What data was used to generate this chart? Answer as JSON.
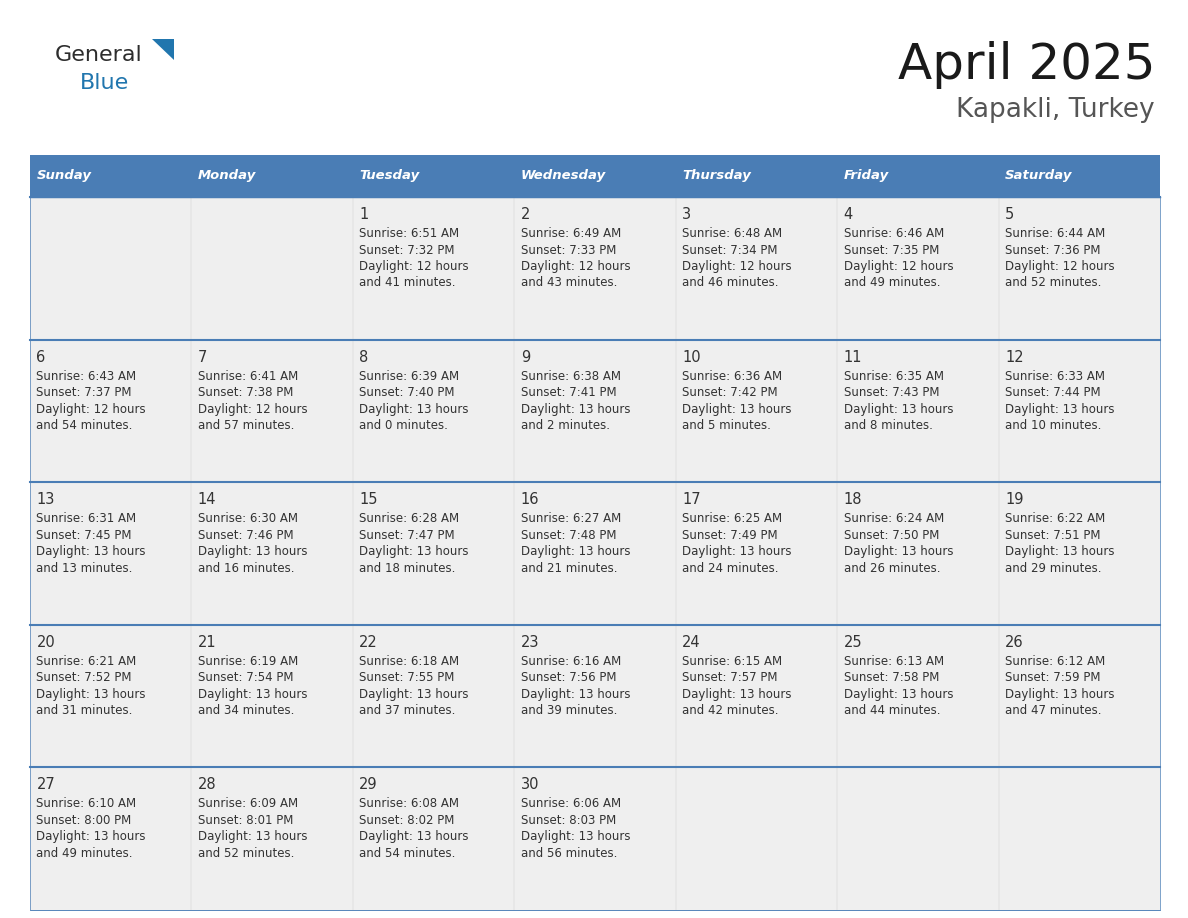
{
  "title": "April 2025",
  "subtitle": "Kapakli, Turkey",
  "header_bg": "#4A7DB5",
  "header_text_color": "#FFFFFF",
  "cell_bg_light": "#EFEFEF",
  "cell_bg_white": "#FFFFFF",
  "border_color": "#4A7DB5",
  "text_color": "#333333",
  "day_names": [
    "Sunday",
    "Monday",
    "Tuesday",
    "Wednesday",
    "Thursday",
    "Friday",
    "Saturday"
  ],
  "days": [
    {
      "day": 1,
      "col": 2,
      "row": 0,
      "sunrise": "6:51 AM",
      "sunset": "7:32 PM",
      "daylight": "12 hours",
      "daylight2": "and 41 minutes."
    },
    {
      "day": 2,
      "col": 3,
      "row": 0,
      "sunrise": "6:49 AM",
      "sunset": "7:33 PM",
      "daylight": "12 hours",
      "daylight2": "and 43 minutes."
    },
    {
      "day": 3,
      "col": 4,
      "row": 0,
      "sunrise": "6:48 AM",
      "sunset": "7:34 PM",
      "daylight": "12 hours",
      "daylight2": "and 46 minutes."
    },
    {
      "day": 4,
      "col": 5,
      "row": 0,
      "sunrise": "6:46 AM",
      "sunset": "7:35 PM",
      "daylight": "12 hours",
      "daylight2": "and 49 minutes."
    },
    {
      "day": 5,
      "col": 6,
      "row": 0,
      "sunrise": "6:44 AM",
      "sunset": "7:36 PM",
      "daylight": "12 hours",
      "daylight2": "and 52 minutes."
    },
    {
      "day": 6,
      "col": 0,
      "row": 1,
      "sunrise": "6:43 AM",
      "sunset": "7:37 PM",
      "daylight": "12 hours",
      "daylight2": "and 54 minutes."
    },
    {
      "day": 7,
      "col": 1,
      "row": 1,
      "sunrise": "6:41 AM",
      "sunset": "7:38 PM",
      "daylight": "12 hours",
      "daylight2": "and 57 minutes."
    },
    {
      "day": 8,
      "col": 2,
      "row": 1,
      "sunrise": "6:39 AM",
      "sunset": "7:40 PM",
      "daylight": "13 hours",
      "daylight2": "and 0 minutes."
    },
    {
      "day": 9,
      "col": 3,
      "row": 1,
      "sunrise": "6:38 AM",
      "sunset": "7:41 PM",
      "daylight": "13 hours",
      "daylight2": "and 2 minutes."
    },
    {
      "day": 10,
      "col": 4,
      "row": 1,
      "sunrise": "6:36 AM",
      "sunset": "7:42 PM",
      "daylight": "13 hours",
      "daylight2": "and 5 minutes."
    },
    {
      "day": 11,
      "col": 5,
      "row": 1,
      "sunrise": "6:35 AM",
      "sunset": "7:43 PM",
      "daylight": "13 hours",
      "daylight2": "and 8 minutes."
    },
    {
      "day": 12,
      "col": 6,
      "row": 1,
      "sunrise": "6:33 AM",
      "sunset": "7:44 PM",
      "daylight": "13 hours",
      "daylight2": "and 10 minutes."
    },
    {
      "day": 13,
      "col": 0,
      "row": 2,
      "sunrise": "6:31 AM",
      "sunset": "7:45 PM",
      "daylight": "13 hours",
      "daylight2": "and 13 minutes."
    },
    {
      "day": 14,
      "col": 1,
      "row": 2,
      "sunrise": "6:30 AM",
      "sunset": "7:46 PM",
      "daylight": "13 hours",
      "daylight2": "and 16 minutes."
    },
    {
      "day": 15,
      "col": 2,
      "row": 2,
      "sunrise": "6:28 AM",
      "sunset": "7:47 PM",
      "daylight": "13 hours",
      "daylight2": "and 18 minutes."
    },
    {
      "day": 16,
      "col": 3,
      "row": 2,
      "sunrise": "6:27 AM",
      "sunset": "7:48 PM",
      "daylight": "13 hours",
      "daylight2": "and 21 minutes."
    },
    {
      "day": 17,
      "col": 4,
      "row": 2,
      "sunrise": "6:25 AM",
      "sunset": "7:49 PM",
      "daylight": "13 hours",
      "daylight2": "and 24 minutes."
    },
    {
      "day": 18,
      "col": 5,
      "row": 2,
      "sunrise": "6:24 AM",
      "sunset": "7:50 PM",
      "daylight": "13 hours",
      "daylight2": "and 26 minutes."
    },
    {
      "day": 19,
      "col": 6,
      "row": 2,
      "sunrise": "6:22 AM",
      "sunset": "7:51 PM",
      "daylight": "13 hours",
      "daylight2": "and 29 minutes."
    },
    {
      "day": 20,
      "col": 0,
      "row": 3,
      "sunrise": "6:21 AM",
      "sunset": "7:52 PM",
      "daylight": "13 hours",
      "daylight2": "and 31 minutes."
    },
    {
      "day": 21,
      "col": 1,
      "row": 3,
      "sunrise": "6:19 AM",
      "sunset": "7:54 PM",
      "daylight": "13 hours",
      "daylight2": "and 34 minutes."
    },
    {
      "day": 22,
      "col": 2,
      "row": 3,
      "sunrise": "6:18 AM",
      "sunset": "7:55 PM",
      "daylight": "13 hours",
      "daylight2": "and 37 minutes."
    },
    {
      "day": 23,
      "col": 3,
      "row": 3,
      "sunrise": "6:16 AM",
      "sunset": "7:56 PM",
      "daylight": "13 hours",
      "daylight2": "and 39 minutes."
    },
    {
      "day": 24,
      "col": 4,
      "row": 3,
      "sunrise": "6:15 AM",
      "sunset": "7:57 PM",
      "daylight": "13 hours",
      "daylight2": "and 42 minutes."
    },
    {
      "day": 25,
      "col": 5,
      "row": 3,
      "sunrise": "6:13 AM",
      "sunset": "7:58 PM",
      "daylight": "13 hours",
      "daylight2": "and 44 minutes."
    },
    {
      "day": 26,
      "col": 6,
      "row": 3,
      "sunrise": "6:12 AM",
      "sunset": "7:59 PM",
      "daylight": "13 hours",
      "daylight2": "and 47 minutes."
    },
    {
      "day": 27,
      "col": 0,
      "row": 4,
      "sunrise": "6:10 AM",
      "sunset": "8:00 PM",
      "daylight": "13 hours",
      "daylight2": "and 49 minutes."
    },
    {
      "day": 28,
      "col": 1,
      "row": 4,
      "sunrise": "6:09 AM",
      "sunset": "8:01 PM",
      "daylight": "13 hours",
      "daylight2": "and 52 minutes."
    },
    {
      "day": 29,
      "col": 2,
      "row": 4,
      "sunrise": "6:08 AM",
      "sunset": "8:02 PM",
      "daylight": "13 hours",
      "daylight2": "and 54 minutes."
    },
    {
      "day": 30,
      "col": 3,
      "row": 4,
      "sunrise": "6:06 AM",
      "sunset": "8:03 PM",
      "daylight": "13 hours",
      "daylight2": "and 56 minutes."
    }
  ],
  "num_rows": 5,
  "num_cols": 7,
  "logo_text1": "General",
  "logo_text2": "Blue",
  "logo_color1": "#2d2d2d",
  "logo_color2": "#2176AE",
  "logo_triangle_color": "#2176AE"
}
